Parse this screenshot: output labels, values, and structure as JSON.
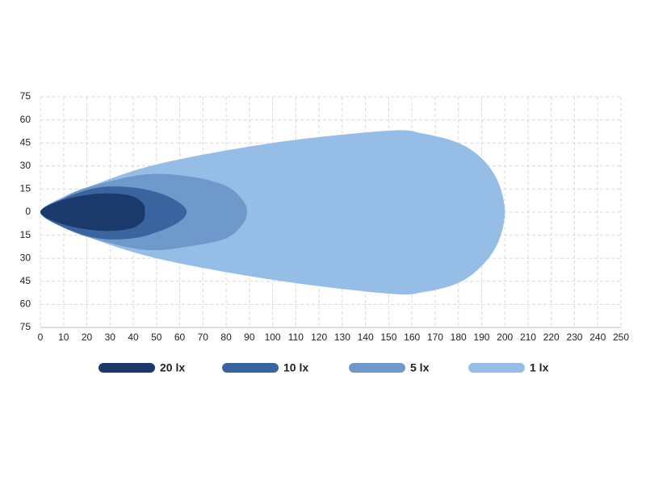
{
  "chart_data": {
    "type": "isolux",
    "xlim": [
      0,
      250
    ],
    "ylim": [
      -75,
      75
    ],
    "xticks": [
      0,
      10,
      20,
      30,
      40,
      50,
      60,
      70,
      80,
      90,
      100,
      110,
      120,
      130,
      140,
      150,
      160,
      170,
      180,
      190,
      200,
      210,
      220,
      230,
      240,
      250
    ],
    "yticks": [
      {
        "value": -75,
        "label": "75"
      },
      {
        "value": -60,
        "label": "60"
      },
      {
        "value": -45,
        "label": "45"
      },
      {
        "value": -30,
        "label": "30"
      },
      {
        "value": -15,
        "label": "15"
      },
      0,
      15,
      30,
      45,
      60,
      75
    ],
    "grid": true,
    "legend": "bottom",
    "series": [
      {
        "name": "20 lx",
        "color": "#1b3a6b",
        "x": [
          0,
          10,
          25,
          38,
          44,
          45,
          44,
          38,
          25,
          10
        ],
        "values": [
          0,
          8,
          12,
          11,
          6,
          0,
          -6,
          -11,
          -12,
          -8
        ]
      },
      {
        "name": "10 lx",
        "color": "#3a64a0",
        "x": [
          0,
          10,
          25,
          40,
          52,
          60,
          63,
          60,
          52,
          40,
          25,
          10
        ],
        "values": [
          0,
          9,
          16,
          16,
          12,
          6,
          0,
          -6,
          -12,
          -17,
          -17,
          -10
        ]
      },
      {
        "name": "5 lx",
        "color": "#6f98cb",
        "x": [
          0,
          10,
          20,
          45,
          65,
          80,
          87,
          89,
          87,
          80,
          65,
          45,
          20,
          10
        ],
        "values": [
          0,
          9,
          16,
          24.5,
          23,
          17,
          8,
          0,
          -8,
          -17,
          -22,
          -24.5,
          -16,
          -9
        ]
      },
      {
        "name": "1 lx",
        "color": "#96bde6",
        "x": [
          0,
          10,
          20,
          50,
          100,
          150,
          165,
          180,
          190,
          197,
          200,
          197,
          190,
          180,
          165,
          150,
          100,
          50,
          20,
          10
        ],
        "values": [
          0,
          10,
          16,
          31,
          45,
          53,
          51,
          45,
          35,
          20,
          0,
          -20,
          -35,
          -46,
          -52,
          -53,
          -44,
          -30,
          -16,
          -10
        ]
      }
    ]
  }
}
